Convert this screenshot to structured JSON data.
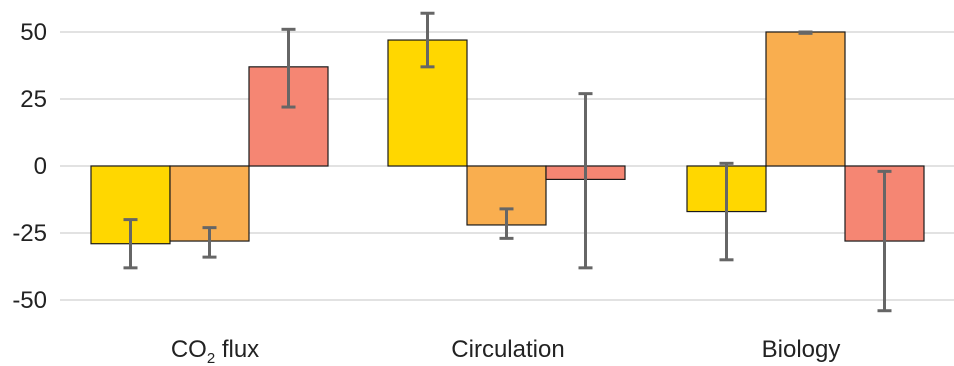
{
  "chart_data": {
    "type": "bar",
    "categories": [
      "CO",
      "Circulation",
      "Biology"
    ],
    "category_parts": {
      "co2": {
        "main": "CO",
        "sub": "2",
        "rest": " flux"
      }
    },
    "series": [
      {
        "color": "#FFD700",
        "values": [
          -29,
          47,
          -17
        ],
        "err_low": [
          -38,
          37,
          -35
        ],
        "err_high": [
          -20,
          57,
          1
        ]
      },
      {
        "color": "#F9AE4F",
        "values": [
          -28,
          -22,
          50
        ],
        "err_low": [
          -34,
          -27,
          49.5
        ],
        "err_high": [
          -23,
          -16,
          50
        ]
      },
      {
        "color": "#F58673",
        "values": [
          37,
          -5,
          -28
        ],
        "err_low": [
          22,
          -38,
          -54
        ],
        "err_high": [
          51,
          27,
          -2
        ]
      }
    ],
    "y_ticks": [
      "50",
      "25",
      "0",
      "-25",
      "-50"
    ],
    "y_tick_values": [
      50,
      25,
      0,
      -25,
      -50
    ],
    "ylim": [
      -60,
      60
    ],
    "grid": true,
    "legend": "none"
  }
}
